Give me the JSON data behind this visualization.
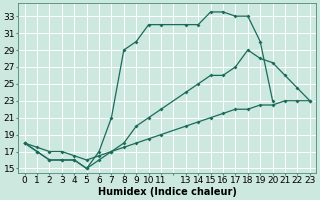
{
  "xlabel": "Humidex (Indice chaleur)",
  "bg_color": "#cce8df",
  "grid_color": "#ffffff",
  "line_color": "#1a6b5a",
  "line1_x": [
    0,
    1,
    2,
    3,
    4,
    5,
    6,
    7,
    8,
    9,
    10,
    11,
    13,
    14,
    15,
    16,
    17,
    18,
    19,
    20
  ],
  "line1_y": [
    18,
    17,
    16,
    16,
    16,
    15,
    17,
    21,
    29,
    30,
    32,
    32,
    32,
    32,
    33.5,
    33.5,
    33,
    33,
    30,
    23
  ],
  "line2_x": [
    0,
    1,
    2,
    3,
    4,
    5,
    6,
    7,
    8,
    9,
    10,
    11,
    13,
    14,
    15,
    16,
    17,
    18,
    19,
    20,
    21,
    22,
    23
  ],
  "line2_y": [
    18,
    17,
    16,
    16,
    16,
    15,
    16,
    17,
    18,
    20,
    21,
    22,
    24,
    25,
    26,
    26,
    27,
    29,
    28,
    27.5,
    26,
    24.5,
    23
  ],
  "line3_x": [
    0,
    1,
    2,
    3,
    4,
    5,
    6,
    7,
    8,
    9,
    10,
    11,
    13,
    14,
    15,
    16,
    17,
    18,
    19,
    20,
    21,
    22,
    23
  ],
  "line3_y": [
    18,
    17.5,
    17,
    17,
    16.5,
    16,
    16.5,
    17,
    17.5,
    18,
    18.5,
    19,
    20,
    20.5,
    21,
    21.5,
    22,
    22,
    22.5,
    22.5,
    23,
    23,
    23
  ],
  "xlim": [
    -0.5,
    23.5
  ],
  "ylim": [
    14.5,
    34.5
  ],
  "yticks": [
    15,
    17,
    19,
    21,
    23,
    25,
    27,
    29,
    31,
    33
  ],
  "xtick_labels": [
    "0",
    "1",
    "2",
    "3",
    "4",
    "5",
    "6",
    "7",
    "8",
    "9",
    "10",
    "11",
    "",
    "13",
    "14",
    "15",
    "16",
    "17",
    "18",
    "19",
    "20",
    "21",
    "22",
    "23"
  ],
  "fontsize": 6.5
}
